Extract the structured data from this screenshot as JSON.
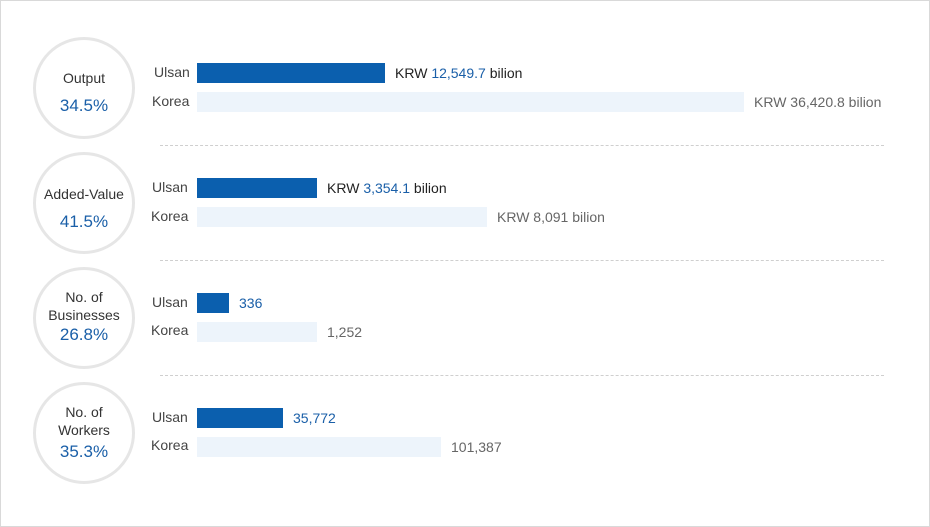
{
  "chart_data": {
    "type": "bar",
    "groups": [
      {
        "metric": "Output",
        "share": "34.5%",
        "ulsan_prefix": "KRW",
        "ulsan_value": "12,549.7",
        "ulsan_suffix": "bilion",
        "korea_value": "KRW 36,420.8 bilion",
        "ulsan_num": 12549.7,
        "korea_num": 36420.8
      },
      {
        "metric": "Added-Value",
        "share": "41.5%",
        "ulsan_prefix": "KRW",
        "ulsan_value": "3,354.1",
        "ulsan_suffix": "bilion",
        "korea_value": "KRW 8,091 bilion",
        "ulsan_num": 3354.1,
        "korea_num": 8091
      },
      {
        "metric": "No. of Businesses",
        "share": "26.8%",
        "ulsan_prefix": "",
        "ulsan_value": "336",
        "ulsan_suffix": "",
        "korea_value": "1,252",
        "ulsan_num": 336,
        "korea_num": 1252
      },
      {
        "metric": "No. of Workers",
        "share": "35.3%",
        "ulsan_prefix": "",
        "ulsan_value": "35,772",
        "ulsan_suffix": "",
        "korea_value": "101,387",
        "ulsan_num": 35772,
        "korea_num": 101387
      }
    ],
    "series": [
      {
        "name": "Ulsan"
      },
      {
        "name": "Korea"
      }
    ],
    "colors": {
      "ulsan": "#0b5fae",
      "korea": "#edf4fb",
      "accent_text": "#1a5fa8"
    }
  }
}
